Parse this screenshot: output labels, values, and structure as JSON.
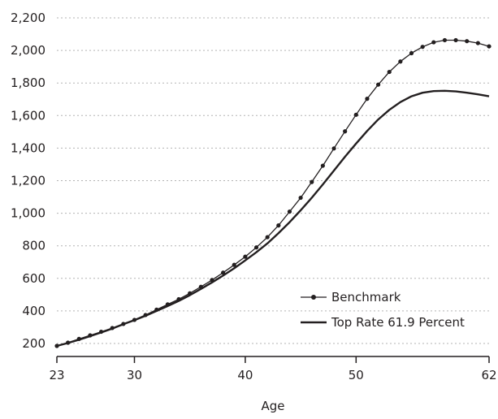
{
  "chart_data": {
    "type": "line",
    "title": "",
    "xlabel": "Age",
    "ylabel": "",
    "xlim": [
      23,
      62
    ],
    "ylim": [
      120,
      2220
    ],
    "x_ticks": [
      23,
      30,
      40,
      50,
      62
    ],
    "y_ticks": [
      200,
      400,
      600,
      800,
      1000,
      1200,
      1400,
      1600,
      1800,
      2000,
      2200
    ],
    "y_tick_labels": [
      "200",
      "400",
      "600",
      "800",
      "1,000",
      "1,200",
      "1,400",
      "1,600",
      "1,800",
      "2,000",
      "2,200"
    ],
    "grid": "horizontal dotted",
    "legend_position": "bottom-right",
    "series": [
      {
        "name": "Benchmark",
        "marker": "dot",
        "color": "#231f20",
        "x": [
          23,
          24,
          25,
          26,
          27,
          28,
          29,
          30,
          31,
          32,
          33,
          34,
          35,
          36,
          37,
          38,
          39,
          40,
          41,
          42,
          43,
          44,
          45,
          46,
          47,
          48,
          49,
          50,
          51,
          52,
          53,
          54,
          55,
          56,
          57,
          58,
          59,
          60,
          61,
          62
        ],
        "values": [
          185,
          205,
          228,
          250,
          272,
          295,
          320,
          345,
          375,
          408,
          440,
          472,
          508,
          548,
          590,
          635,
          683,
          733,
          790,
          853,
          925,
          1010,
          1095,
          1192,
          1292,
          1398,
          1503,
          1605,
          1703,
          1790,
          1868,
          1932,
          1983,
          2022,
          2050,
          2063,
          2063,
          2057,
          2045,
          2025
        ]
      },
      {
        "name": "Top Rate 61.9 Percent",
        "marker": "none",
        "color": "#231f20",
        "x": [
          23,
          24,
          25,
          26,
          27,
          28,
          29,
          30,
          31,
          32,
          33,
          34,
          35,
          36,
          37,
          38,
          39,
          40,
          41,
          42,
          43,
          44,
          45,
          46,
          47,
          48,
          49,
          50,
          51,
          52,
          53,
          54,
          55,
          56,
          57,
          58,
          59,
          60,
          61,
          62
        ],
        "values": [
          185,
          203,
          223,
          245,
          268,
          292,
          318,
          343,
          370,
          400,
          430,
          462,
          497,
          535,
          575,
          617,
          662,
          710,
          760,
          815,
          878,
          945,
          1018,
          1095,
          1177,
          1262,
          1347,
          1428,
          1505,
          1576,
          1635,
          1683,
          1718,
          1740,
          1750,
          1752,
          1748,
          1740,
          1730,
          1718
        ]
      }
    ]
  },
  "axes": {
    "x_label": "Age"
  },
  "legend": {
    "items": [
      "Benchmark",
      "Top Rate 61.9 Percent"
    ]
  },
  "colors": {
    "line": "#231f20",
    "grid": "#b3b3b3"
  }
}
